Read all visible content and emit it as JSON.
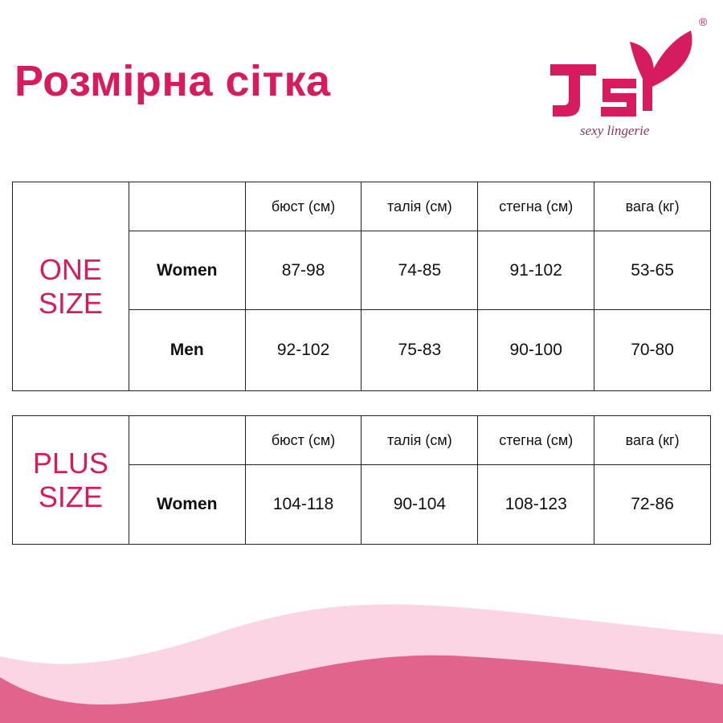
{
  "title": "Розмірна сітка",
  "brand": {
    "logo_text": "JSY",
    "tagline": "sexy lingerie",
    "registered_mark": "®",
    "color": "#d61c5e"
  },
  "columns": [
    "бюст (см)",
    "талія (см)",
    "стегна (см)",
    "вага (кг)"
  ],
  "one_size": {
    "label_line1": "ONE",
    "label_line2": "SIZE",
    "rows": [
      {
        "label": "Women",
        "values": [
          "87-98",
          "74-85",
          "91-102",
          "53-65"
        ]
      },
      {
        "label": "Men",
        "values": [
          "92-102",
          "75-83",
          "90-100",
          "70-80"
        ]
      }
    ]
  },
  "plus_size": {
    "label_line1": "PLUS",
    "label_line2": "SIZE",
    "rows": [
      {
        "label": "Women",
        "values": [
          "104-118",
          "90-104",
          "108-123",
          "72-86"
        ]
      }
    ]
  },
  "colors": {
    "accent": "#d61c5e",
    "wave_light": "#fbd5e4",
    "wave_dark": "#e0648b"
  }
}
